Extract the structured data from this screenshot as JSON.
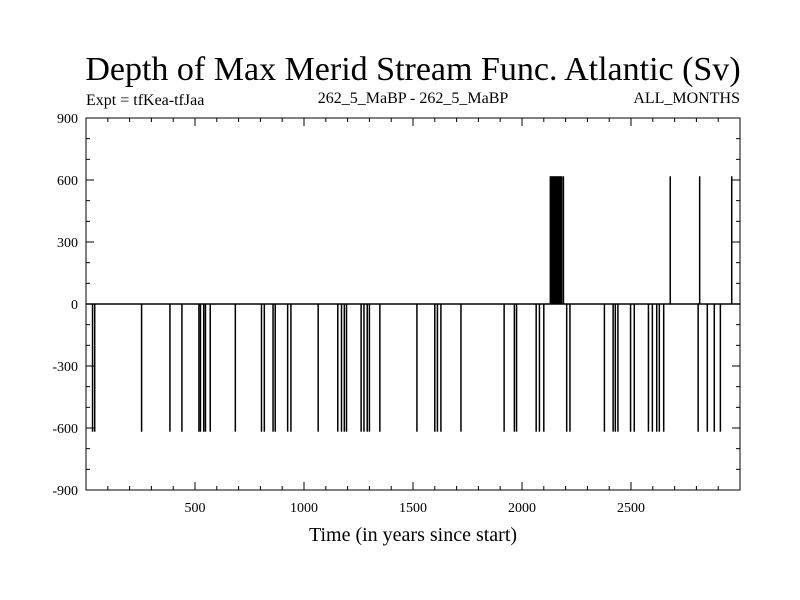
{
  "header": {
    "title": "Depth of Max Merid Stream Func. Atlantic (Sv)",
    "left_label": "Expt = tfKea-tfJaa",
    "center_label": "262_5_MaBP - 262_5_MaBP",
    "right_label": "ALL_MONTHS"
  },
  "colors": {
    "line": "#000000",
    "background": "#ffffff"
  },
  "chart_data": {
    "type": "line",
    "title": "Depth of Max Merid Stream Func. Atlantic (Sv)",
    "xlabel": "Time (in years since start)",
    "ylabel": "",
    "xlim": [
      0,
      3000
    ],
    "ylim": [
      -900,
      900
    ],
    "x_ticks": [
      500,
      1000,
      1500,
      2000,
      2500
    ],
    "x_tick_labels": [
      "500",
      "1000",
      "1500",
      "2000",
      "2500"
    ],
    "y_ticks": [
      -900,
      -600,
      -300,
      0,
      300,
      600,
      900
    ],
    "y_tick_labels": [
      "-900",
      "-600",
      "-300",
      "0",
      "300",
      "600",
      "900"
    ],
    "baseline": 0,
    "grid": false,
    "legend": "none",
    "series": [
      {
        "spikes": [
          {
            "x": 30,
            "y": -618
          },
          {
            "x": 40,
            "y": -618
          },
          {
            "x": 255,
            "y": -618
          },
          {
            "x": 385,
            "y": -618
          },
          {
            "x": 440,
            "y": -618
          },
          {
            "x": 518,
            "y": -618
          },
          {
            "x": 525,
            "y": -618
          },
          {
            "x": 540,
            "y": -618
          },
          {
            "x": 548,
            "y": -618
          },
          {
            "x": 570,
            "y": -618
          },
          {
            "x": 685,
            "y": -618
          },
          {
            "x": 805,
            "y": -618
          },
          {
            "x": 818,
            "y": -618
          },
          {
            "x": 858,
            "y": -618
          },
          {
            "x": 868,
            "y": -618
          },
          {
            "x": 925,
            "y": -618
          },
          {
            "x": 940,
            "y": -618
          },
          {
            "x": 1065,
            "y": -618
          },
          {
            "x": 1155,
            "y": -618
          },
          {
            "x": 1172,
            "y": -618
          },
          {
            "x": 1185,
            "y": -618
          },
          {
            "x": 1195,
            "y": -618
          },
          {
            "x": 1262,
            "y": -618
          },
          {
            "x": 1275,
            "y": -618
          },
          {
            "x": 1290,
            "y": -618
          },
          {
            "x": 1300,
            "y": -618
          },
          {
            "x": 1348,
            "y": -618
          },
          {
            "x": 1518,
            "y": -618
          },
          {
            "x": 1600,
            "y": -618
          },
          {
            "x": 1612,
            "y": -618
          },
          {
            "x": 1628,
            "y": -618
          },
          {
            "x": 1720,
            "y": -618
          },
          {
            "x": 1918,
            "y": -618
          },
          {
            "x": 1965,
            "y": -618
          },
          {
            "x": 1975,
            "y": -618
          },
          {
            "x": 2065,
            "y": -618
          },
          {
            "x": 2080,
            "y": -618
          },
          {
            "x": 2100,
            "y": -618
          },
          {
            "x": 2130,
            "y": 618
          },
          {
            "x": 2134,
            "y": 618
          },
          {
            "x": 2138,
            "y": 618
          },
          {
            "x": 2142,
            "y": 618
          },
          {
            "x": 2146,
            "y": 618
          },
          {
            "x": 2150,
            "y": 618
          },
          {
            "x": 2154,
            "y": 618
          },
          {
            "x": 2158,
            "y": 618
          },
          {
            "x": 2162,
            "y": 618
          },
          {
            "x": 2166,
            "y": 618
          },
          {
            "x": 2170,
            "y": 618
          },
          {
            "x": 2174,
            "y": 618
          },
          {
            "x": 2178,
            "y": 618
          },
          {
            "x": 2182,
            "y": 618
          },
          {
            "x": 2190,
            "y": 618
          },
          {
            "x": 2205,
            "y": -618
          },
          {
            "x": 2220,
            "y": -618
          },
          {
            "x": 2378,
            "y": -618
          },
          {
            "x": 2418,
            "y": -618
          },
          {
            "x": 2428,
            "y": -618
          },
          {
            "x": 2440,
            "y": -618
          },
          {
            "x": 2498,
            "y": -618
          },
          {
            "x": 2515,
            "y": -618
          },
          {
            "x": 2580,
            "y": -618
          },
          {
            "x": 2598,
            "y": -618
          },
          {
            "x": 2618,
            "y": -618
          },
          {
            "x": 2630,
            "y": -618
          },
          {
            "x": 2650,
            "y": -618
          },
          {
            "x": 2680,
            "y": 618
          },
          {
            "x": 2808,
            "y": -618
          },
          {
            "x": 2815,
            "y": 618
          },
          {
            "x": 2850,
            "y": -618
          },
          {
            "x": 2882,
            "y": -618
          },
          {
            "x": 2910,
            "y": -618
          },
          {
            "x": 2962,
            "y": 618
          }
        ]
      }
    ]
  }
}
